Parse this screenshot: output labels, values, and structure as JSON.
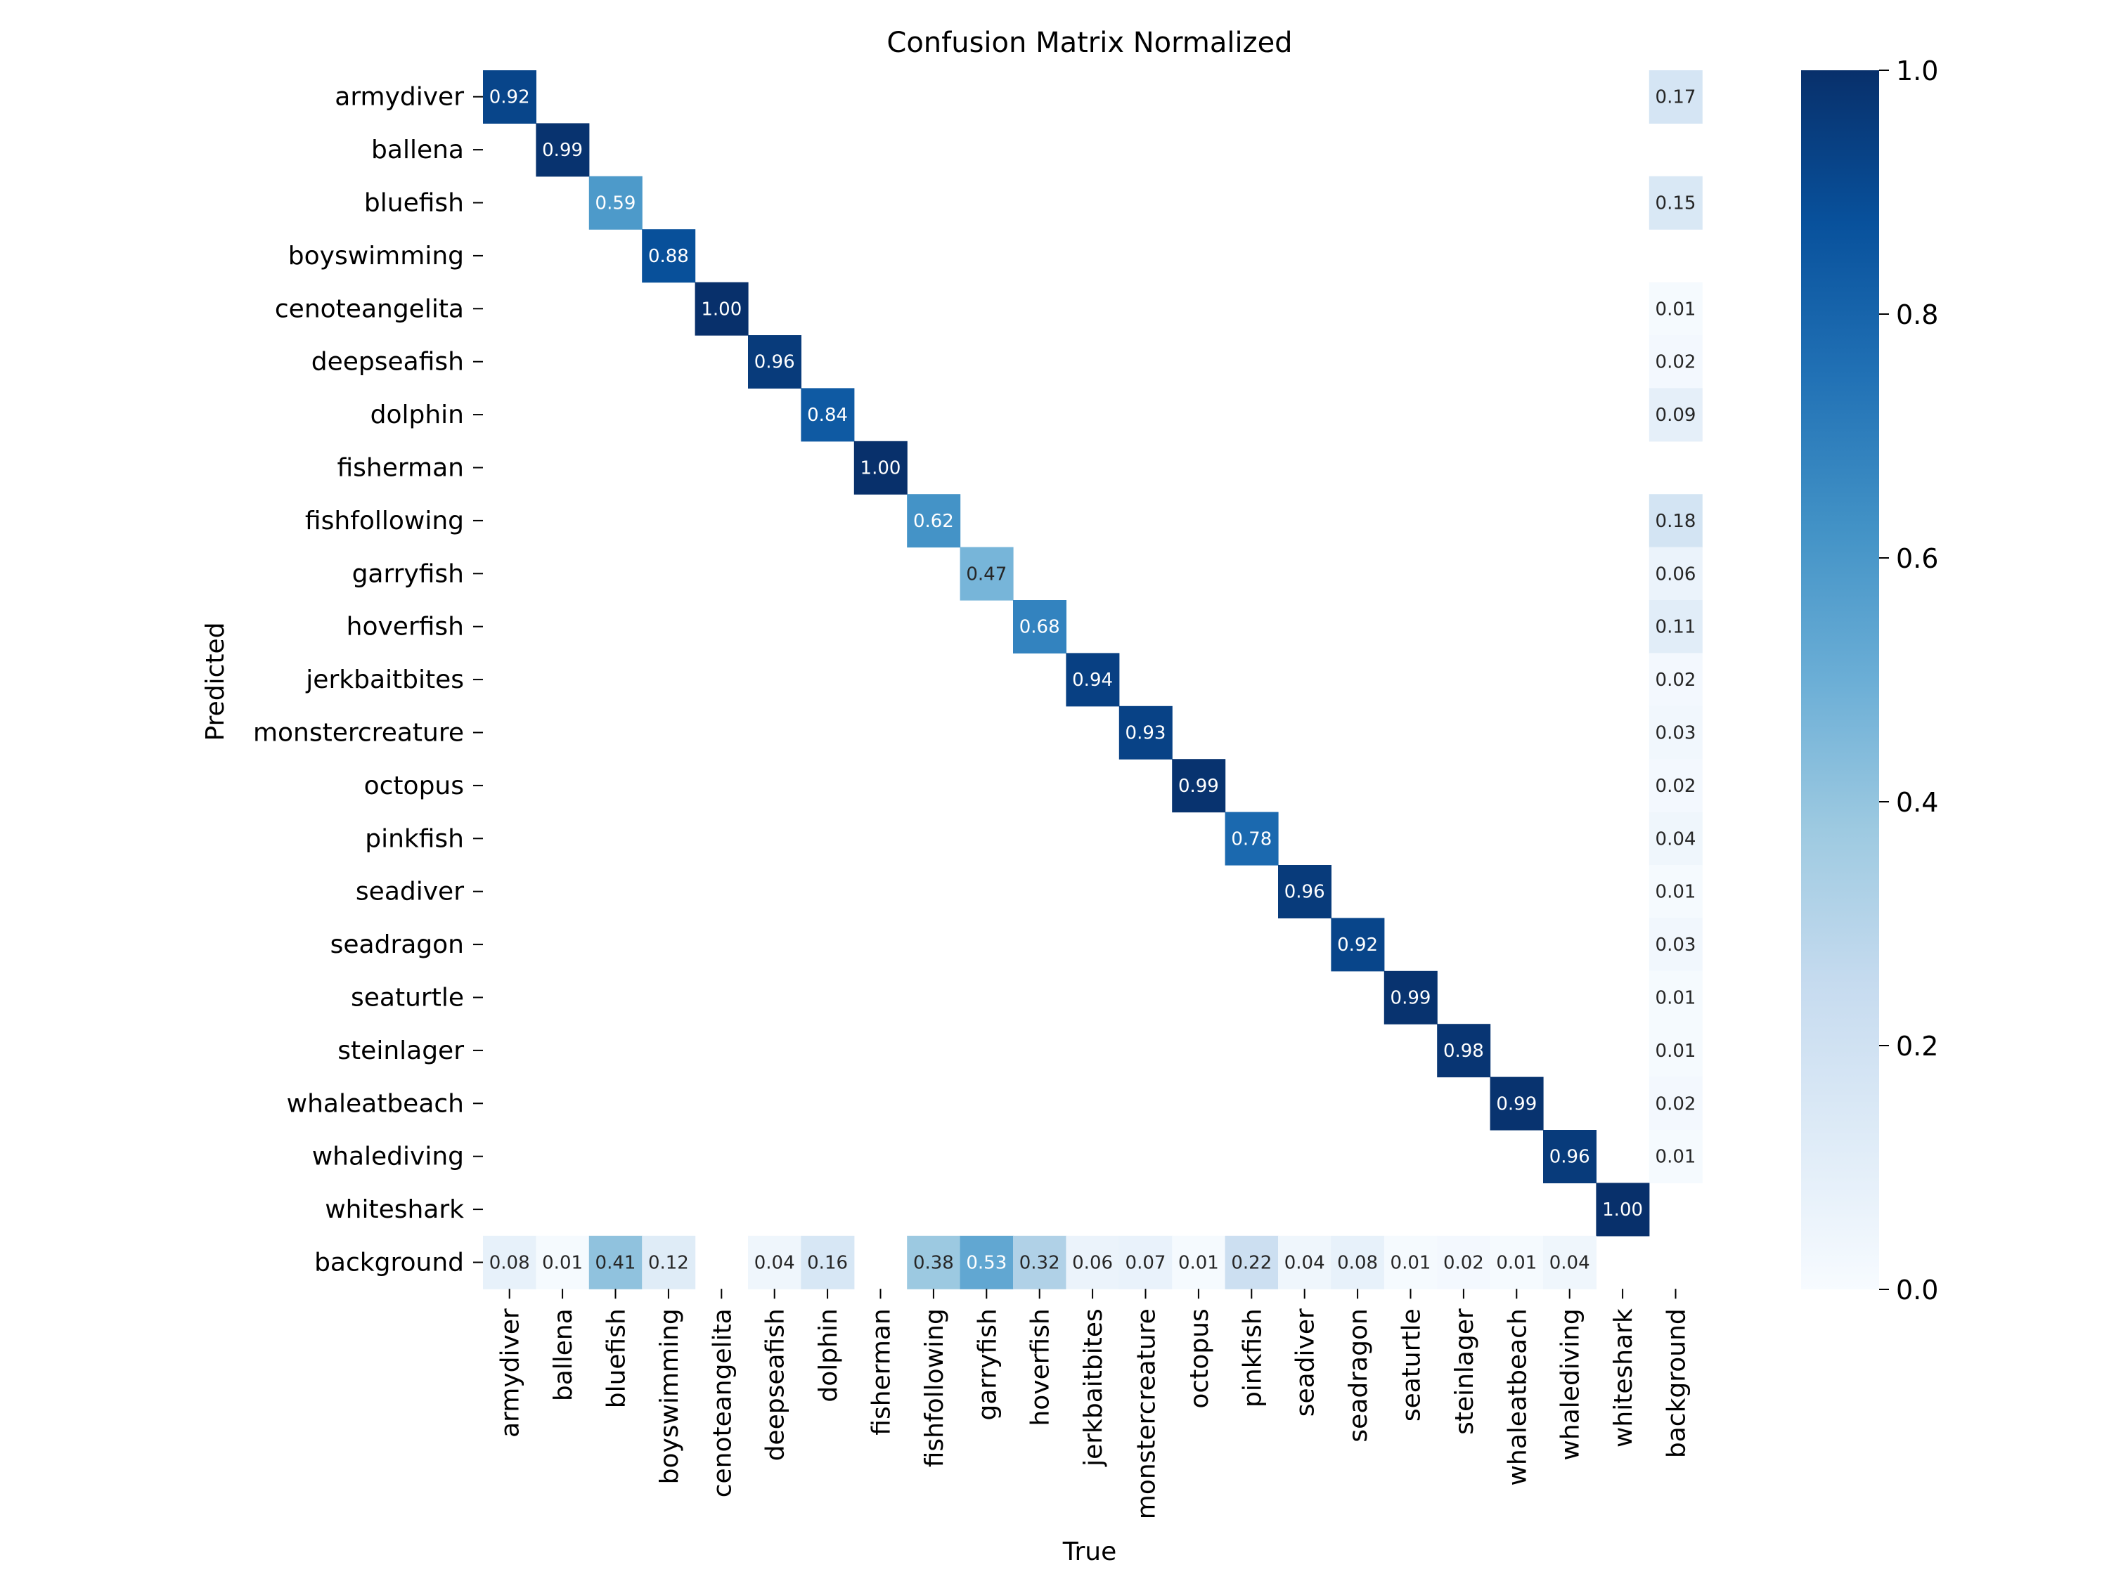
{
  "chart_data": {
    "type": "heatmap",
    "title": "Confusion Matrix Normalized",
    "xlabel": "True",
    "ylabel": "Predicted",
    "x_categories": [
      "armydiver",
      "ballena",
      "bluefish",
      "boyswimming",
      "cenoteangelita",
      "deepseafish",
      "dolphin",
      "fisherman",
      "fishfollowing",
      "garryfish",
      "hoverfish",
      "jerkbaitbites",
      "monstercreature",
      "octopus",
      "pinkfish",
      "seadiver",
      "seadragon",
      "seaturtle",
      "steinlager",
      "whaleatbeach",
      "whalediving",
      "whiteshark",
      "background"
    ],
    "y_categories": [
      "armydiver",
      "ballena",
      "bluefish",
      "boyswimming",
      "cenoteangelita",
      "deepseafish",
      "dolphin",
      "fisherman",
      "fishfollowing",
      "garryfish",
      "hoverfish",
      "jerkbaitbites",
      "monstercreature",
      "octopus",
      "pinkfish",
      "seadiver",
      "seadragon",
      "seaturtle",
      "steinlager",
      "whaleatbeach",
      "whalediving",
      "whiteshark",
      "background"
    ],
    "cells": [
      {
        "row": "armydiver",
        "col": "armydiver",
        "value": 0.92
      },
      {
        "row": "armydiver",
        "col": "background",
        "value": 0.17
      },
      {
        "row": "ballena",
        "col": "ballena",
        "value": 0.99
      },
      {
        "row": "bluefish",
        "col": "bluefish",
        "value": 0.59
      },
      {
        "row": "bluefish",
        "col": "background",
        "value": 0.15
      },
      {
        "row": "boyswimming",
        "col": "boyswimming",
        "value": 0.88
      },
      {
        "row": "cenoteangelita",
        "col": "cenoteangelita",
        "value": 1.0
      },
      {
        "row": "cenoteangelita",
        "col": "background",
        "value": 0.01
      },
      {
        "row": "deepseafish",
        "col": "deepseafish",
        "value": 0.96
      },
      {
        "row": "deepseafish",
        "col": "background",
        "value": 0.02
      },
      {
        "row": "dolphin",
        "col": "dolphin",
        "value": 0.84
      },
      {
        "row": "dolphin",
        "col": "background",
        "value": 0.09
      },
      {
        "row": "fisherman",
        "col": "fisherman",
        "value": 1.0
      },
      {
        "row": "fishfollowing",
        "col": "fishfollowing",
        "value": 0.62
      },
      {
        "row": "fishfollowing",
        "col": "background",
        "value": 0.18
      },
      {
        "row": "garryfish",
        "col": "garryfish",
        "value": 0.47
      },
      {
        "row": "garryfish",
        "col": "background",
        "value": 0.06
      },
      {
        "row": "hoverfish",
        "col": "hoverfish",
        "value": 0.68
      },
      {
        "row": "hoverfish",
        "col": "background",
        "value": 0.11
      },
      {
        "row": "jerkbaitbites",
        "col": "jerkbaitbites",
        "value": 0.94
      },
      {
        "row": "jerkbaitbites",
        "col": "background",
        "value": 0.02
      },
      {
        "row": "monstercreature",
        "col": "monstercreature",
        "value": 0.93
      },
      {
        "row": "monstercreature",
        "col": "background",
        "value": 0.03
      },
      {
        "row": "octopus",
        "col": "octopus",
        "value": 0.99
      },
      {
        "row": "octopus",
        "col": "background",
        "value": 0.02
      },
      {
        "row": "pinkfish",
        "col": "pinkfish",
        "value": 0.78
      },
      {
        "row": "pinkfish",
        "col": "background",
        "value": 0.04
      },
      {
        "row": "seadiver",
        "col": "seadiver",
        "value": 0.96
      },
      {
        "row": "seadiver",
        "col": "background",
        "value": 0.01
      },
      {
        "row": "seadragon",
        "col": "seadragon",
        "value": 0.92
      },
      {
        "row": "seadragon",
        "col": "background",
        "value": 0.03
      },
      {
        "row": "seaturtle",
        "col": "seaturtle",
        "value": 0.99
      },
      {
        "row": "seaturtle",
        "col": "background",
        "value": 0.01
      },
      {
        "row": "steinlager",
        "col": "steinlager",
        "value": 0.98
      },
      {
        "row": "steinlager",
        "col": "background",
        "value": 0.01
      },
      {
        "row": "whaleatbeach",
        "col": "whaleatbeach",
        "value": 0.99
      },
      {
        "row": "whaleatbeach",
        "col": "background",
        "value": 0.02
      },
      {
        "row": "whalediving",
        "col": "whalediving",
        "value": 0.96
      },
      {
        "row": "whalediving",
        "col": "background",
        "value": 0.01
      },
      {
        "row": "whiteshark",
        "col": "whiteshark",
        "value": 1.0
      },
      {
        "row": "background",
        "col": "armydiver",
        "value": 0.08
      },
      {
        "row": "background",
        "col": "ballena",
        "value": 0.01
      },
      {
        "row": "background",
        "col": "bluefish",
        "value": 0.41
      },
      {
        "row": "background",
        "col": "boyswimming",
        "value": 0.12
      },
      {
        "row": "background",
        "col": "deepseafish",
        "value": 0.04
      },
      {
        "row": "background",
        "col": "dolphin",
        "value": 0.16
      },
      {
        "row": "background",
        "col": "fishfollowing",
        "value": 0.38
      },
      {
        "row": "background",
        "col": "garryfish",
        "value": 0.53
      },
      {
        "row": "background",
        "col": "hoverfish",
        "value": 0.32
      },
      {
        "row": "background",
        "col": "jerkbaitbites",
        "value": 0.06
      },
      {
        "row": "background",
        "col": "monstercreature",
        "value": 0.07
      },
      {
        "row": "background",
        "col": "octopus",
        "value": 0.01
      },
      {
        "row": "background",
        "col": "pinkfish",
        "value": 0.22
      },
      {
        "row": "background",
        "col": "seadiver",
        "value": 0.04
      },
      {
        "row": "background",
        "col": "seadragon",
        "value": 0.08
      },
      {
        "row": "background",
        "col": "seaturtle",
        "value": 0.01
      },
      {
        "row": "background",
        "col": "steinlager",
        "value": 0.02
      },
      {
        "row": "background",
        "col": "whaleatbeach",
        "value": 0.01
      },
      {
        "row": "background",
        "col": "whalediving",
        "value": 0.04
      }
    ],
    "value_format": "2 decimals",
    "colorbar": {
      "range": [
        0.0,
        1.0
      ],
      "ticks": [
        0.0,
        0.2,
        0.4,
        0.6,
        0.8,
        1.0
      ],
      "tick_labels": [
        "0.0",
        "0.2",
        "0.4",
        "0.6",
        "0.8",
        "1.0"
      ],
      "colormap": "Blues",
      "low_color": "#f7fbff",
      "high_color": "#08306b"
    },
    "legend_placement": "right",
    "grid": false
  }
}
